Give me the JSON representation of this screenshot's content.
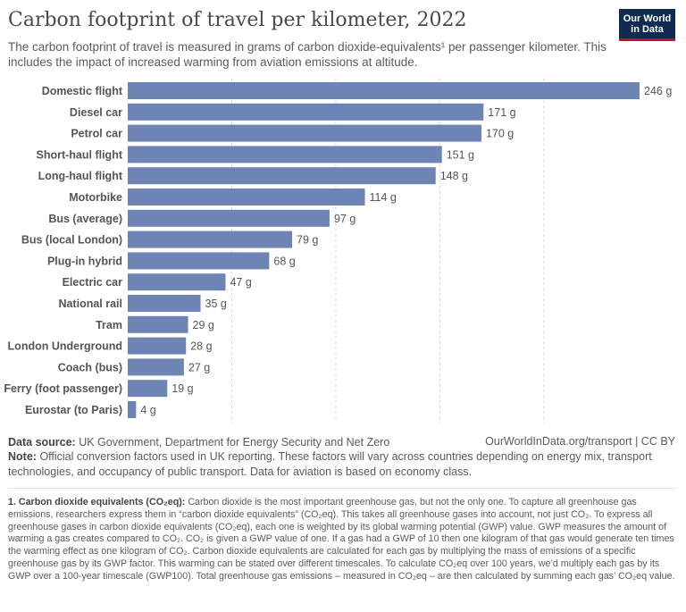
{
  "header": {
    "title": "Carbon footprint of travel per kilometer, 2022",
    "subtitle": "The carbon footprint of travel is measured in grams of carbon dioxide-equivalents¹ per passenger kilometer. This includes the impact of increased warming from aviation emissions at altitude.",
    "logo_line1": "Our World",
    "logo_line2": "in Data"
  },
  "chart_data": {
    "type": "bar",
    "orientation": "horizontal",
    "categories": [
      "Domestic flight",
      "Diesel car",
      "Petrol car",
      "Short-haul flight",
      "Long-haul flight",
      "Motorbike",
      "Bus (average)",
      "Bus (local London)",
      "Plug-in hybrid",
      "Electric car",
      "National rail",
      "Tram",
      "London Underground",
      "Coach (bus)",
      "Ferry (foot passenger)",
      "Eurostar (to Paris)"
    ],
    "values": [
      246,
      171,
      170,
      151,
      148,
      114,
      97,
      79,
      68,
      47,
      35,
      29,
      28,
      27,
      19,
      4
    ],
    "value_labels": [
      "246 g",
      "171 g",
      "170 g",
      "151 g",
      "148 g",
      "114 g",
      "97 g",
      "79 g",
      "68 g",
      "47 g",
      "35 g",
      "29 g",
      "28 g",
      "27 g",
      "19 g",
      "4 g"
    ],
    "unit": "g",
    "xlim": [
      0,
      246
    ],
    "gridlines_x": [
      50,
      100,
      150,
      200
    ],
    "grid": true,
    "bar_color": "#6d84b4"
  },
  "footer": {
    "source_label": "Data source:",
    "source_text": "UK Government, Department for Energy Security and Net Zero",
    "site": "OurWorldInData.org/transport | CC BY",
    "note_label": "Note:",
    "note_text": "Official conversion factors used in UK reporting. These factors will vary across countries depending on energy mix, transport technologies, and occupancy of public transport. Data for aviation is based on economy class.",
    "footnote_label": "1. Carbon dioxide equivalents (CO₂eq):",
    "footnote_text": "Carbon dioxide is the most important greenhouse gas, but not the only one. To capture all greenhouse gas emissions, researchers express them in “carbon dioxide equivalents” (CO₂eq). This takes all greenhouse gases into account, not just CO₂. To express all greenhouse gases in carbon dioxide equivalents (CO₂eq), each one is weighted by its global warming potential (GWP) value. GWP measures the amount of warming a gas creates compared to CO₂. CO₂ is given a GWP value of one. If a gas had a GWP of 10 then one kilogram of that gas would generate ten times the warming effect as one kilogram of CO₂. Carbon dioxide equivalents are calculated for each gas by multiplying the mass of emissions of a specific greenhouse gas by its GWP factor. This warming can be stated over different timescales. To calculate CO₂eq over 100 years, we’d multiply each gas by its GWP over a 100-year timescale (GWP100). Total greenhouse gas emissions – measured in CO₂eq – are then calculated by summing each gas’ CO₂eq value."
  }
}
